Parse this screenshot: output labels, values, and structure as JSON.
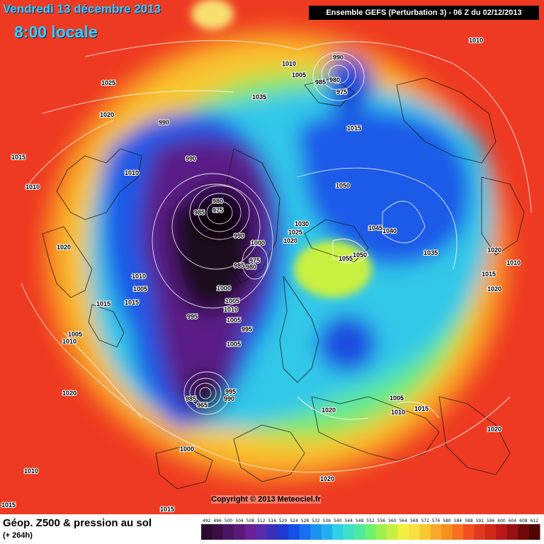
{
  "header": {
    "date": "Vendredi 13 décembre 2013",
    "time": "8:00 locale",
    "model": "Ensemble GEFS (Perturbation 3)  -  06 Z du 02/12/2013"
  },
  "footer": {
    "product": "Géop. Z500 & pression au sol",
    "lead_time": "(+ 264h)",
    "copyright": "Copyright © 2013 Meteociel.fr"
  },
  "legend": {
    "ticks": [
      "492",
      "496",
      "500",
      "504",
      "508",
      "512",
      "516",
      "520",
      "524",
      "528",
      "532",
      "536",
      "540",
      "544",
      "548",
      "552",
      "556",
      "560",
      "564",
      "568",
      "572",
      "576",
      "580",
      "584",
      "588",
      "592",
      "596",
      "600",
      "604",
      "608",
      "612"
    ],
    "colors": [
      "#2a0a2e",
      "#3b0f45",
      "#4a1560",
      "#5b1a7a",
      "#6a1f94",
      "#5a2aa8",
      "#3a30b8",
      "#1f3ad0",
      "#1450e6",
      "#1670f0",
      "#1a90f0",
      "#20b0f0",
      "#30d0e8",
      "#40e0c8",
      "#50e8a0",
      "#70f070",
      "#a0f050",
      "#c8f040",
      "#f0f040",
      "#f8e040",
      "#f8c830",
      "#f8a828",
      "#f89020",
      "#f87020",
      "#f05020",
      "#e03820",
      "#d02818",
      "#b81818",
      "#981010",
      "#700808",
      "#500404"
    ]
  },
  "pressure_labels": [
    "990",
    "980",
    "975",
    "1035",
    "1010",
    "1005",
    "985",
    "1025",
    "1015",
    "1020",
    "990",
    "990",
    "980",
    "975",
    "985",
    "1030",
    "1025",
    "1020",
    "1050",
    "1045",
    "1040",
    "1035",
    "1020",
    "1010",
    "1015",
    "1020",
    "1015",
    "1010",
    "1000",
    "990",
    "975",
    "985",
    "980",
    "1000",
    "1010",
    "1005",
    "995",
    "1005",
    "1005",
    "995",
    "1010",
    "1005",
    "1020",
    "1015",
    "1010",
    "1005",
    "1010",
    "1020",
    "1000",
    "1015",
    "1010",
    "1015",
    "985",
    "965",
    "995",
    "990",
    "1020",
    "1005",
    "1010",
    "1015",
    "1020",
    "1020",
    "1015",
    "1055",
    "1050",
    "1010"
  ],
  "map_layers": [
    "polar-stereographic-projection",
    "geopotential-z500-color-field",
    "sea-level-pressure-isobars",
    "coastlines"
  ]
}
